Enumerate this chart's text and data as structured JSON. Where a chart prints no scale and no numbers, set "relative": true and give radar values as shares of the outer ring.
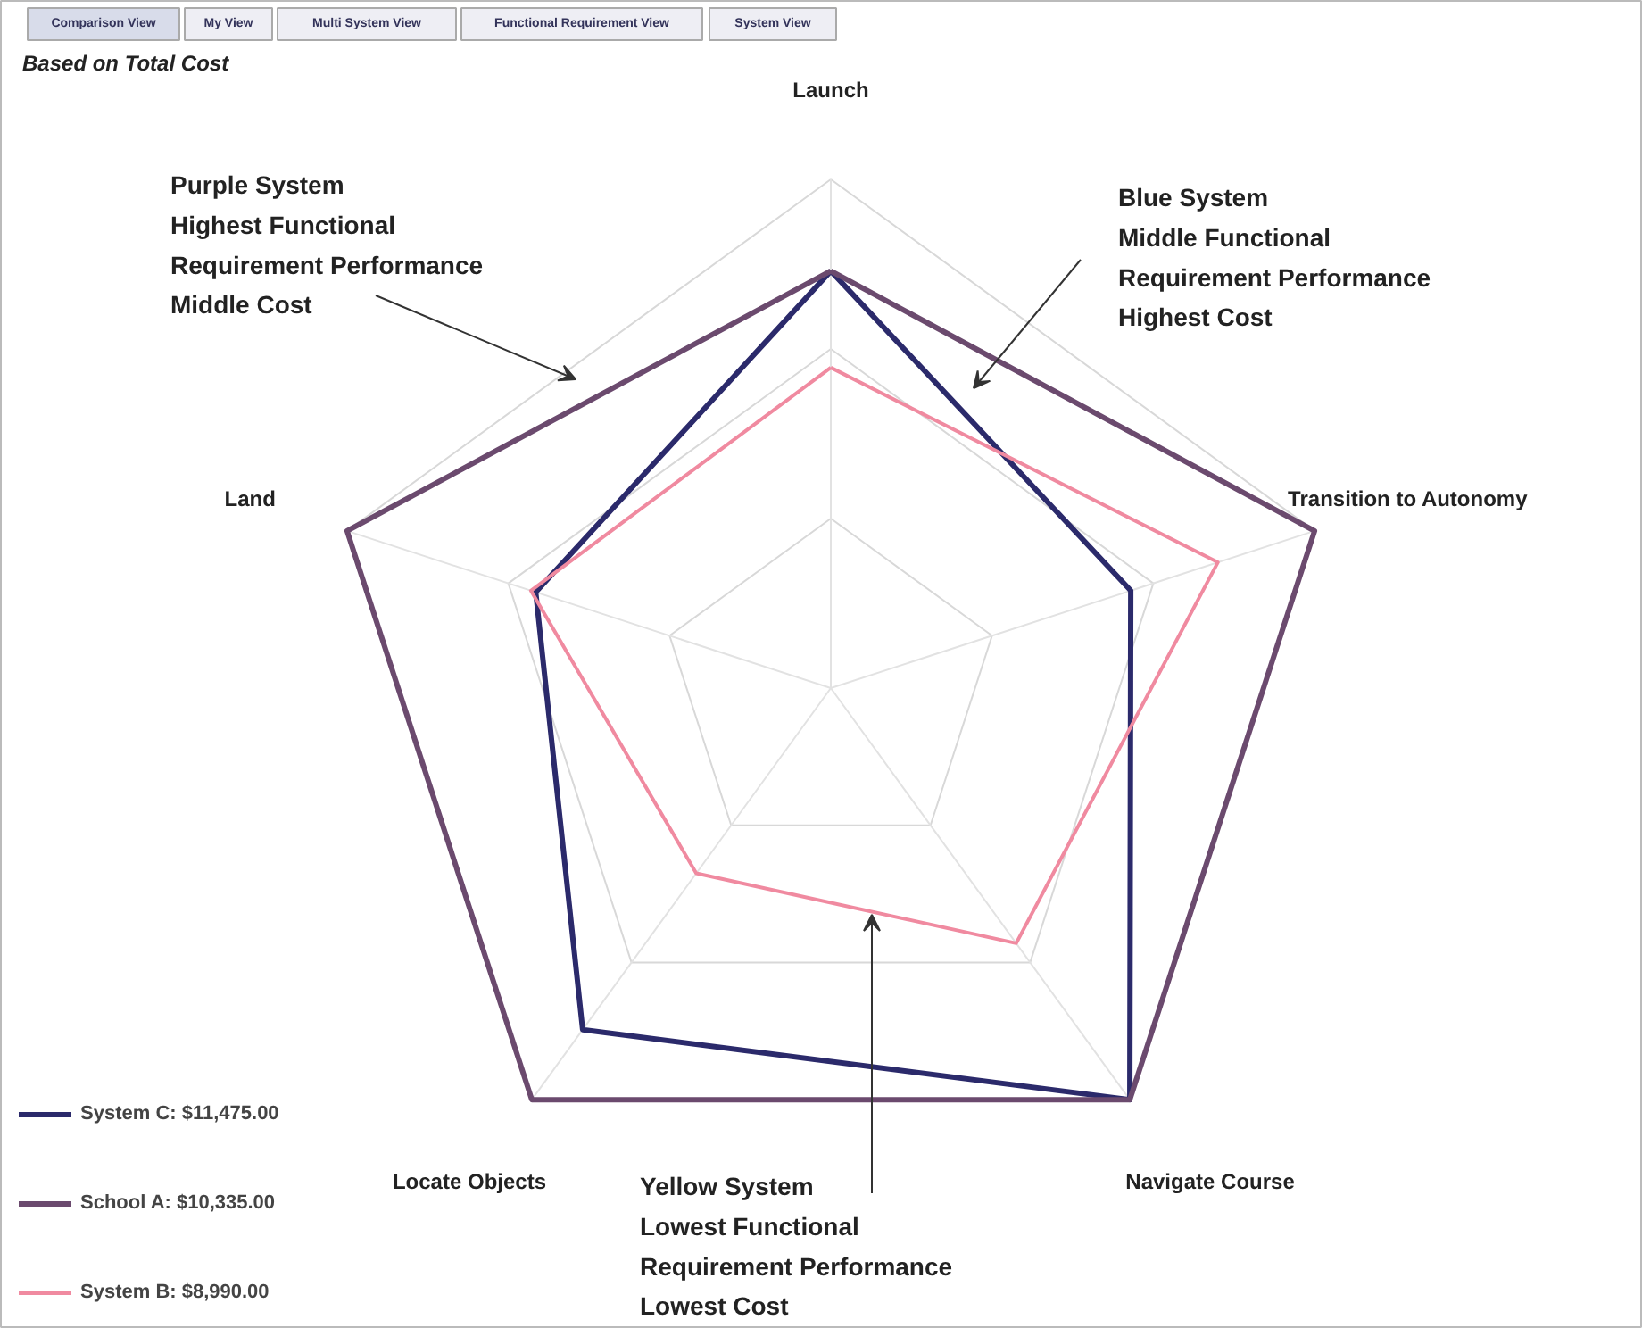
{
  "chart_data": {
    "type": "radar",
    "title": "Based on Total Cost",
    "relative": true,
    "grid": true,
    "legend": "bottom left",
    "categories": [
      "Launch",
      "Transition to Autonomy",
      "Navigate Course",
      "Locate Objects",
      "Land"
    ],
    "series": [
      {
        "name": "System C: $11,475.00",
        "color": "#2b2a6b",
        "values": [
          0.82,
          0.62,
          1.0,
          0.83,
          0.61
        ]
      },
      {
        "name": "School A: $10,335.00",
        "color": "#6b4a6e",
        "values": [
          0.82,
          1.0,
          1.0,
          1.0,
          1.0
        ]
      },
      {
        "name": "System B: $8,990.00",
        "color": "#f08aa0",
        "values": [
          0.63,
          0.8,
          0.62,
          0.45,
          0.62
        ]
      }
    ],
    "annotations": [
      "Comparison View",
      "My View",
      "Multi System View",
      "Functional Requirement View",
      "System View",
      "Purple System\nHighest Functional\nRequirement Performance\nMiddle Cost",
      "Blue System\nMiddle Functional\nRequirement Performance\nHighest Cost",
      "Yellow System\nLowest Functional\nRequirement Performance\nLowest Cost"
    ]
  }
}
